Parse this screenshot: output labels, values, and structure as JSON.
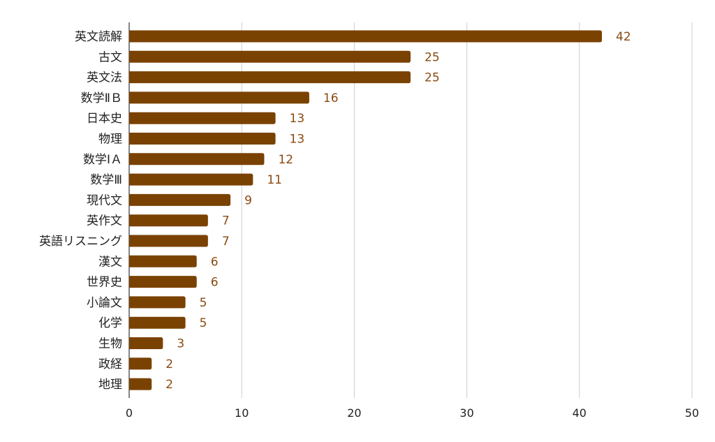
{
  "chart_data": {
    "type": "bar",
    "orientation": "horizontal",
    "title": "",
    "xlabel": "",
    "ylabel": "",
    "categories": [
      "英文読解",
      "古文",
      "英文法",
      "数学ⅡＢ",
      "日本史",
      "物理",
      "数学ⅠＡ",
      "数学Ⅲ",
      "現代文",
      "英作文",
      "英語リスニング",
      "漢文",
      "世界史",
      "小論文",
      "化学",
      "生物",
      "政経",
      "地理"
    ],
    "values": [
      42,
      25,
      25,
      16,
      13,
      13,
      12,
      11,
      9,
      7,
      7,
      6,
      6,
      5,
      5,
      3,
      2,
      2
    ],
    "xlim": [
      0,
      50
    ],
    "xticks": [
      0,
      10,
      20,
      30,
      40,
      50
    ],
    "grid": "vertical",
    "data_labels": true,
    "bar_color": "#7a4200",
    "label_color": "#8b4a10"
  }
}
